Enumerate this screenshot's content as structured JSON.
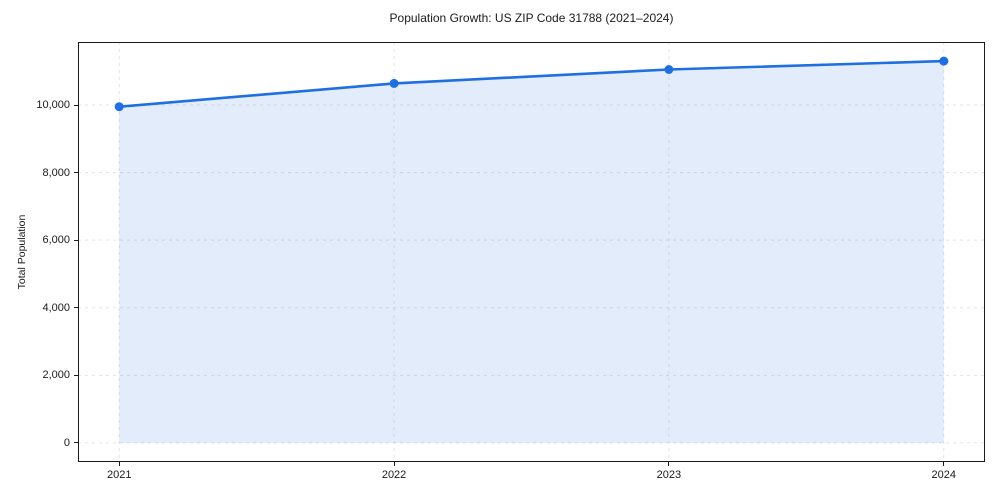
{
  "colors": {
    "line": "#1f6fe0",
    "fill_opacity": 0.13,
    "grid": "#e3e3e3",
    "spine": "#1c1c1c",
    "text": "#1a1a1a",
    "background": "#ffffff"
  },
  "chart_data": {
    "type": "line",
    "area_fill": true,
    "marker": "circle",
    "title": "Population Growth: US ZIP Code 31788 (2021–2024)",
    "xlabel": "",
    "ylabel": "Total Population",
    "x": [
      2021,
      2022,
      2023,
      2024
    ],
    "values": [
      9950,
      10640,
      11050,
      11300
    ],
    "xlim": [
      2020.85,
      2024.15
    ],
    "ylim": [
      -565,
      11865
    ],
    "xticks": [
      2021,
      2022,
      2023,
      2024
    ],
    "xtick_labels": [
      "2021",
      "2022",
      "2023",
      "2024"
    ],
    "yticks": [
      0,
      2000,
      4000,
      6000,
      8000,
      10000
    ],
    "ytick_labels": [
      "0",
      "2,000",
      "4,000",
      "6,000",
      "8,000",
      "10,000"
    ],
    "grid": true,
    "grid_style": "dashed",
    "legend": false
  }
}
